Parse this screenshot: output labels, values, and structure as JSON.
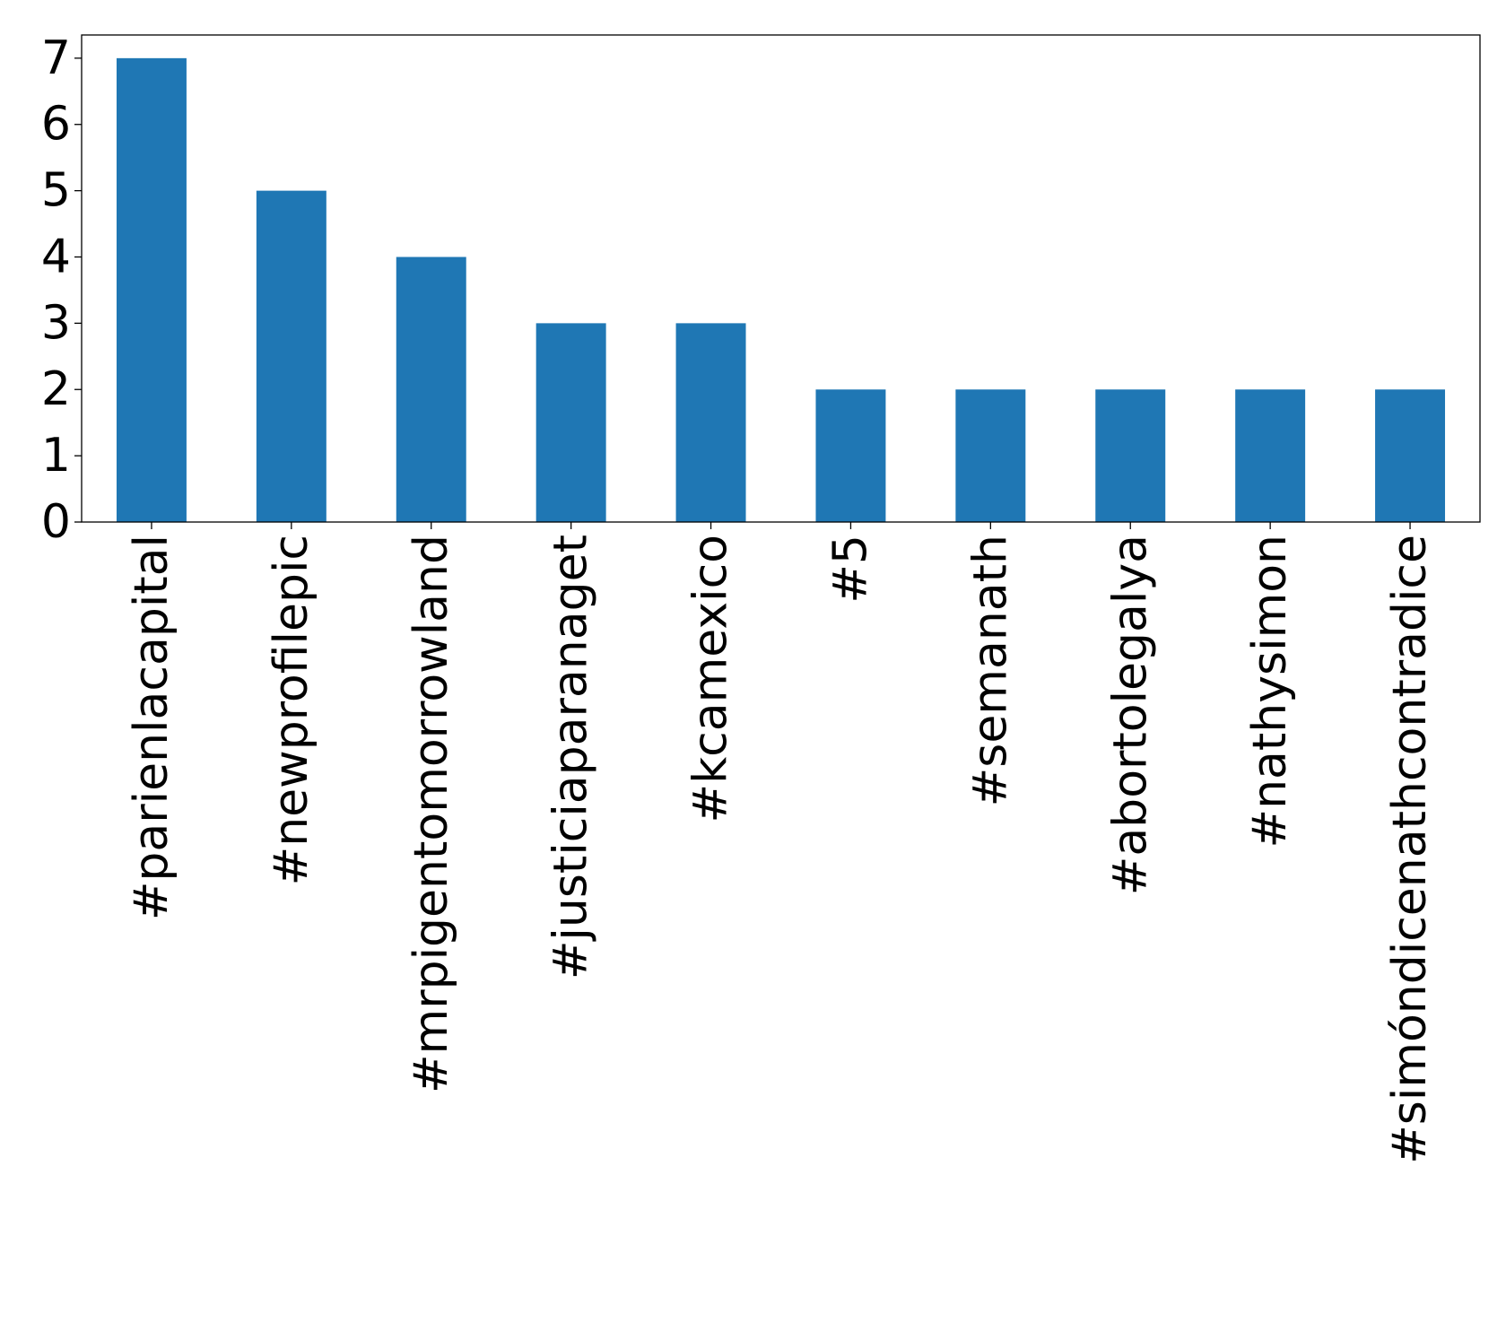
{
  "chart_data": {
    "type": "bar",
    "categories": [
      "#parienlacapital",
      "#newprofilepic",
      "#mrpigentomorrowland",
      "#justiciaparanaget",
      "#kcamexico",
      "#5",
      "#semanath",
      "#abortolegalya",
      "#nathysimon",
      "#simóndicenathcontradice"
    ],
    "values": [
      7,
      5,
      4,
      3,
      3,
      2,
      2,
      2,
      2,
      2
    ],
    "title": "",
    "xlabel": "",
    "ylabel": "",
    "ylim": [
      0,
      7.35
    ],
    "yticks": [
      0,
      1,
      2,
      3,
      4,
      5,
      6,
      7
    ],
    "grid": false,
    "bar_color": "#1f77b4",
    "axis_color": "#000000"
  }
}
